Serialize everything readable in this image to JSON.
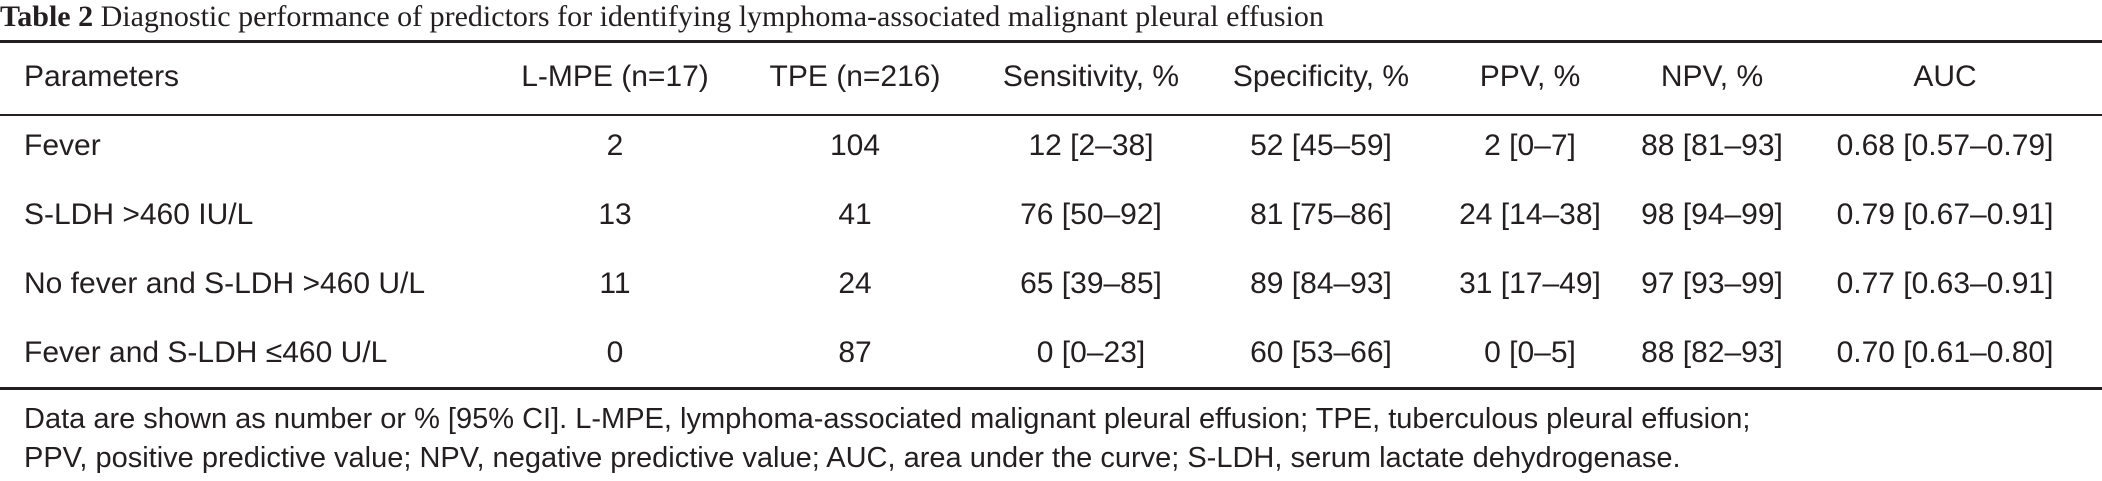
{
  "caption": {
    "label": "Table 2",
    "text": "Diagnostic performance of predictors for identifying lymphoma-associated malignant pleural effusion"
  },
  "table": {
    "headers": [
      "Parameters",
      "L-MPE (n=17)",
      "TPE (n=216)",
      "Sensitivity, %",
      "Specificity, %",
      "PPV, %",
      "NPV, %",
      "AUC"
    ],
    "rows": [
      [
        "Fever",
        "2",
        "104",
        "12 [2–38]",
        "52 [45–59]",
        "2 [0–7]",
        "88 [81–93]",
        "0.68 [0.57–0.79]"
      ],
      [
        "S-LDH >460 IU/L",
        "13",
        "41",
        "76 [50–92]",
        "81 [75–86]",
        "24 [14–38]",
        "98 [94–99]",
        "0.79 [0.67–0.91]"
      ],
      [
        "No fever and S-LDH >460 U/L",
        "11",
        "24",
        "65 [39–85]",
        "89 [84–93]",
        "31 [17–49]",
        "97 [93–99]",
        "0.77 [0.63–0.91]"
      ],
      [
        "Fever and S-LDH ≤460 U/L",
        "0",
        "87",
        "0 [0–23]",
        "60 [53–66]",
        "0 [0–5]",
        "88 [82–93]",
        "0.70 [0.61–0.80]"
      ]
    ]
  },
  "footnote": {
    "line1": "Data are shown as number or % [95% CI]. L-MPE, lymphoma-associated malignant pleural effusion; TPE, tuberculous pleural effusion;",
    "line2": "PPV, positive predictive value; NPV, negative predictive value; AUC, area under the curve; S-LDH, serum lactate dehydrogenase."
  }
}
